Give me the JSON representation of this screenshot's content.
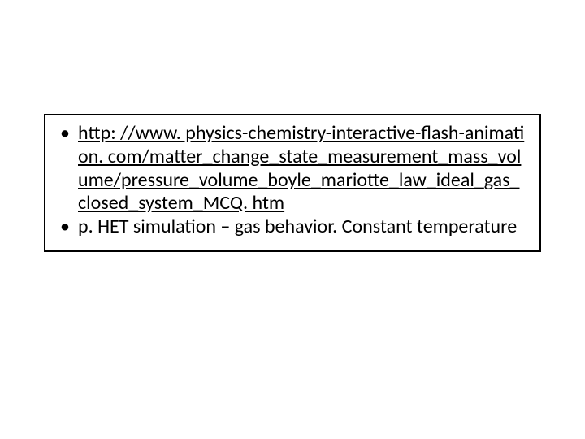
{
  "slide": {
    "bullets": [
      {
        "type": "link",
        "text": "http: //www. physics-chemistry-interactive-flash-animation. com/matter_change_state_measurement_mass_volume/pressure_volume_boyle_mariotte_law_ideal_gas_closed_system_MCQ. htm"
      },
      {
        "type": "text",
        "text": "p. HET simulation – gas behavior. Constant temperature"
      }
    ]
  },
  "style": {
    "slide_width": 720,
    "slide_height": 540,
    "background_color": "#ffffff",
    "text_color": "#000000",
    "border_color": "#000000",
    "border_width": 2,
    "font_size": 24,
    "font_family": "Calibri, Arial, sans-serif",
    "bullet_char": "•",
    "link_underline": true
  }
}
